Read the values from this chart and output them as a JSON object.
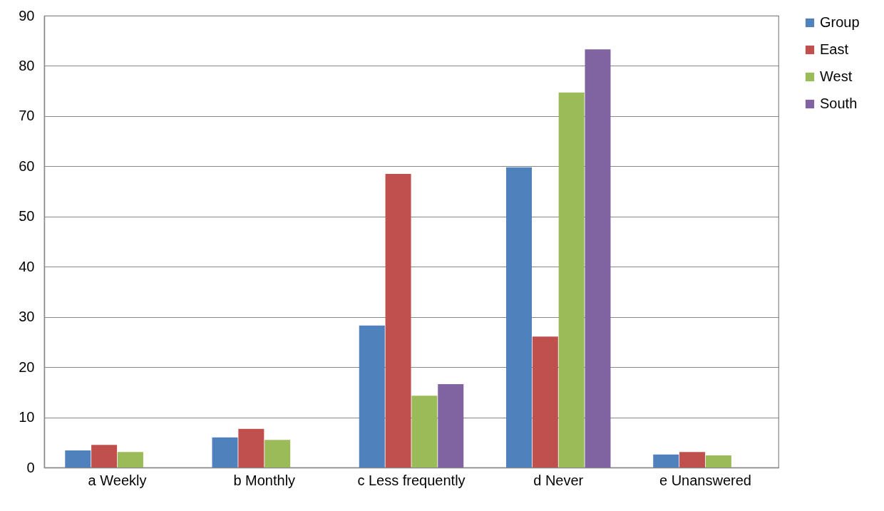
{
  "chart_data": {
    "type": "bar",
    "categories": [
      "a Weekly",
      "b Monthly",
      "c Less frequently",
      "d Never",
      "e Unanswered"
    ],
    "series": [
      {
        "name": "Group",
        "color": "#4f81bd",
        "values": [
          3.4,
          6.0,
          28.3,
          59.8,
          2.6
        ]
      },
      {
        "name": "East",
        "color": "#c0504d",
        "values": [
          4.5,
          7.7,
          58.5,
          26.1,
          3.1
        ]
      },
      {
        "name": "West",
        "color": "#9bbb59",
        "values": [
          3.1,
          5.5,
          14.3,
          74.7,
          2.4
        ]
      },
      {
        "name": "South",
        "color": "#8064a2",
        "values": [
          0,
          0,
          16.6,
          83.3,
          0
        ]
      }
    ],
    "ylim": [
      0,
      90
    ],
    "yticks": [
      0,
      10,
      20,
      30,
      40,
      50,
      60,
      70,
      80,
      90
    ],
    "grid": "y",
    "legend": "right"
  }
}
